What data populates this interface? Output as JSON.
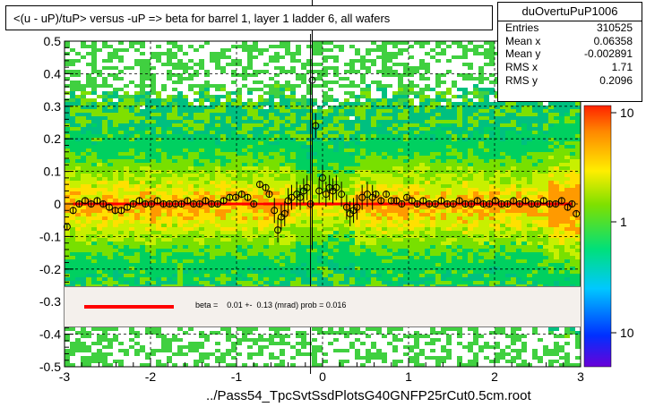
{
  "title": "<(u - uP)/tuP> versus  -uP => beta for barrel 1, layer 1 ladder 6, all wafers",
  "stats": {
    "name": "duOvertuPuP1006",
    "rows": [
      {
        "label": "Entries",
        "value": "310525"
      },
      {
        "label": "Mean x",
        "value": "0.06358"
      },
      {
        "label": "Mean y",
        "value": "-0.002891"
      },
      {
        "label": "RMS x",
        "value": "1.71"
      },
      {
        "label": "RMS y",
        "value": "0.2096"
      }
    ]
  },
  "legend": {
    "fit_text": "beta =    0.01 +-  0.13 (mrad) prob = 0.016",
    "fit_color": "#ff0000"
  },
  "xlabel": "../Pass54_TpcSvtSsdPlotsG40GNFP25rCut0.5cm.root",
  "chart_data": {
    "type": "scatter",
    "title": "<(u - uP)/tuP> versus  -uP => beta for barrel 1, layer 1 ladder 6, all wafers",
    "xlabel": "../Pass54_TpcSvtSsdPlotsG40GNFP25rCut0.5cm.root",
    "ylabel": "",
    "xlim": [
      -3,
      3
    ],
    "ylim": [
      -0.5,
      0.5
    ],
    "x_ticks": [
      "-3",
      "-2",
      "-1",
      "0",
      "1",
      "2",
      "3"
    ],
    "y_ticks": [
      "-0.5",
      "-0.4",
      "-0.3",
      "-0.2",
      "-0.1",
      "0",
      "0.1",
      "0.2",
      "0.3",
      "0.4",
      "0.5"
    ],
    "z_ticks": [
      "10",
      "1",
      "10"
    ],
    "z_scale": "log",
    "grid": true,
    "background": "2D histogram (colz), log color scale",
    "profile_points": {
      "x": [
        -2.97,
        -2.9,
        -2.83,
        -2.76,
        -2.69,
        -2.62,
        -2.55,
        -2.48,
        -2.41,
        -2.34,
        -2.27,
        -2.2,
        -2.13,
        -2.06,
        -1.99,
        -1.92,
        -1.85,
        -1.78,
        -1.71,
        -1.64,
        -1.57,
        -1.5,
        -1.43,
        -1.36,
        -1.29,
        -1.22,
        -1.15,
        -1.08,
        -1.01,
        -0.94,
        -0.87,
        -0.8,
        -0.73,
        -0.66,
        -0.62,
        -0.56,
        -0.52,
        -0.48,
        -0.44,
        -0.4,
        -0.36,
        -0.3,
        -0.26,
        -0.22,
        -0.18,
        -0.14,
        -0.12,
        -0.08,
        -0.04,
        0.0,
        0.04,
        0.08,
        0.12,
        0.16,
        0.22,
        0.28,
        0.32,
        0.36,
        0.4,
        0.46,
        0.52,
        0.58,
        0.62,
        0.68,
        0.74,
        0.8,
        0.86,
        0.92,
        0.98,
        1.04,
        1.1,
        1.17,
        1.24,
        1.31,
        1.38,
        1.45,
        1.52,
        1.59,
        1.66,
        1.73,
        1.8,
        1.87,
        1.94,
        2.01,
        2.08,
        2.15,
        2.22,
        2.29,
        2.36,
        2.43,
        2.5,
        2.57,
        2.64,
        2.71,
        2.78,
        2.85,
        2.9,
        2.95
      ],
      "y": [
        -0.07,
        -0.02,
        0.0,
        0.01,
        0.0,
        0.01,
        0.0,
        -0.01,
        -0.02,
        -0.02,
        -0.01,
        0.0,
        0.01,
        0.0,
        0.0,
        0.01,
        0.0,
        0.0,
        0.0,
        0.0,
        0.01,
        0.0,
        0.0,
        0.01,
        0.0,
        0.0,
        0.01,
        0.02,
        0.02,
        0.03,
        0.02,
        0.0,
        0.06,
        0.05,
        0.03,
        -0.02,
        -0.08,
        -0.04,
        -0.03,
        0.01,
        0.02,
        0.03,
        0.02,
        0.04,
        0.05,
        0.0,
        0.38,
        0.24,
        0.04,
        0.08,
        0.03,
        0.05,
        0.04,
        0.05,
        0.03,
        -0.01,
        -0.03,
        -0.02,
        -0.01,
        0.02,
        0.03,
        0.02,
        0.03,
        0.01,
        0.03,
        0.01,
        0.01,
        0.0,
        0.02,
        0.01,
        0.0,
        0.01,
        0.0,
        0.0,
        0.01,
        0.0,
        0.0,
        0.01,
        0.0,
        0.0,
        0.01,
        0.0,
        0.0,
        0.01,
        0.0,
        0.0,
        0.01,
        0.0,
        0.01,
        0.0,
        0.0,
        0.01,
        0.0,
        0.0,
        0.01,
        -0.01,
        0.0,
        -0.03
      ]
    },
    "fit_line": {
      "x": [
        -2.9,
        2.9
      ],
      "y": [
        0.0,
        0.0
      ],
      "color": "#ff0000"
    }
  }
}
